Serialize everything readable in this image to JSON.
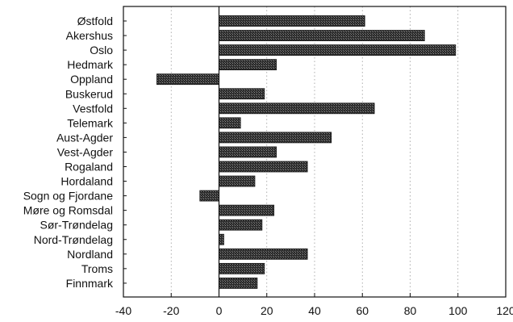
{
  "chart_data": {
    "type": "bar",
    "orientation": "horizontal",
    "title": "",
    "xlabel": "",
    "ylabel": "",
    "xlim": [
      -40,
      120
    ],
    "x_ticks": [
      -40,
      -20,
      0,
      20,
      40,
      60,
      80,
      100,
      120
    ],
    "grid": "vertical dotted",
    "legend": "none",
    "bar_color": "#2b2b2b",
    "categories": [
      "Østfold",
      "Akershus",
      "Oslo",
      "Hedmark",
      "Oppland",
      "Buskerud",
      "Vestfold",
      "Telemark",
      "Aust-Agder",
      "Vest-Agder",
      "Rogaland",
      "Hordaland",
      "Sogn og Fjordane",
      "Møre og Romsdal",
      "Sør-Trøndelag",
      "Nord-Trøndelag",
      "Nordland",
      "Troms",
      "Finnmark"
    ],
    "values": [
      61,
      86,
      99,
      24,
      -26,
      19,
      65,
      9,
      47,
      24,
      37,
      15,
      -8,
      23,
      18,
      2,
      37,
      19,
      16
    ]
  }
}
